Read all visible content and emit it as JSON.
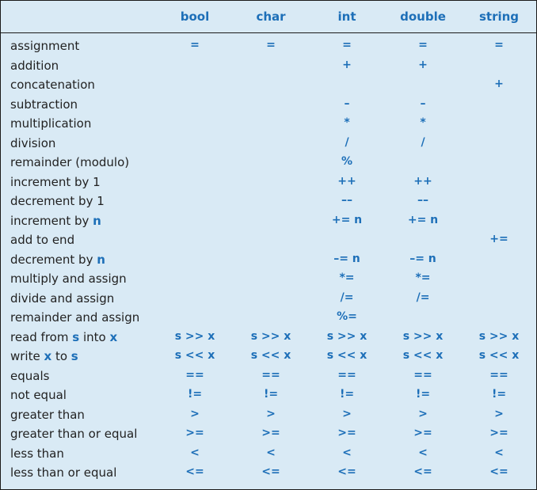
{
  "columns": [
    "bool",
    "char",
    "int",
    "double",
    "string"
  ],
  "rows": [
    {
      "label": [
        {
          "t": "assignment"
        }
      ],
      "values": [
        "=",
        "=",
        "=",
        "=",
        "="
      ]
    },
    {
      "label": [
        {
          "t": "addition"
        }
      ],
      "values": [
        "",
        "",
        "+",
        "+",
        ""
      ]
    },
    {
      "label": [
        {
          "t": "concatenation"
        }
      ],
      "values": [
        "",
        "",
        "",
        "",
        "+"
      ]
    },
    {
      "label": [
        {
          "t": "subtraction"
        }
      ],
      "values": [
        "",
        "",
        "–",
        "–",
        ""
      ]
    },
    {
      "label": [
        {
          "t": "multiplication"
        }
      ],
      "values": [
        "",
        "",
        "*",
        "*",
        ""
      ]
    },
    {
      "label": [
        {
          "t": "division"
        }
      ],
      "values": [
        "",
        "",
        "/",
        "/",
        ""
      ]
    },
    {
      "label": [
        {
          "t": "remainder (modulo)"
        }
      ],
      "values": [
        "",
        "",
        "%",
        "",
        ""
      ]
    },
    {
      "label": [
        {
          "t": "increment by 1"
        }
      ],
      "values": [
        "",
        "",
        "++",
        "++",
        ""
      ]
    },
    {
      "label": [
        {
          "t": "decrement by 1"
        }
      ],
      "values": [
        "",
        "",
        "––",
        "––",
        ""
      ]
    },
    {
      "label": [
        {
          "t": "increment by "
        },
        {
          "t": "n",
          "hl": true
        }
      ],
      "values": [
        "",
        "",
        "+= n",
        "+= n",
        ""
      ]
    },
    {
      "label": [
        {
          "t": "add to end"
        }
      ],
      "values": [
        "",
        "",
        "",
        "",
        "+="
      ]
    },
    {
      "label": [
        {
          "t": "decrement by "
        },
        {
          "t": "n",
          "hl": true
        }
      ],
      "values": [
        "",
        "",
        "–= n",
        "–= n",
        ""
      ]
    },
    {
      "label": [
        {
          "t": "multiply and assign"
        }
      ],
      "values": [
        "",
        "",
        "*=",
        "*=",
        ""
      ]
    },
    {
      "label": [
        {
          "t": "divide and assign"
        }
      ],
      "values": [
        "",
        "",
        "/=",
        "/=",
        ""
      ]
    },
    {
      "label": [
        {
          "t": "remainder and assign"
        }
      ],
      "values": [
        "",
        "",
        "%=",
        "",
        ""
      ]
    },
    {
      "label": [
        {
          "t": "read from "
        },
        {
          "t": "s",
          "hl": true
        },
        {
          "t": " into "
        },
        {
          "t": "x",
          "hl": true
        }
      ],
      "values": [
        "s >> x",
        "s >> x",
        "s >> x",
        "s >> x",
        "s >> x"
      ]
    },
    {
      "label": [
        {
          "t": "write "
        },
        {
          "t": "x",
          "hl": true
        },
        {
          "t": " to "
        },
        {
          "t": "s",
          "hl": true
        }
      ],
      "values": [
        "s << x",
        "s << x",
        "s << x",
        "s << x",
        "s << x"
      ]
    },
    {
      "label": [
        {
          "t": "equals"
        }
      ],
      "values": [
        "==",
        "==",
        "==",
        "==",
        "=="
      ]
    },
    {
      "label": [
        {
          "t": "not equal"
        }
      ],
      "values": [
        "!=",
        "!=",
        "!=",
        "!=",
        "!="
      ]
    },
    {
      "label": [
        {
          "t": "greater than"
        }
      ],
      "values": [
        ">",
        ">",
        ">",
        ">",
        ">"
      ]
    },
    {
      "label": [
        {
          "t": "greater than or equal"
        }
      ],
      "values": [
        ">=",
        ">=",
        ">=",
        ">=",
        ">="
      ]
    },
    {
      "label": [
        {
          "t": "less than"
        }
      ],
      "values": [
        "<",
        "<",
        "<",
        "<",
        "<"
      ]
    },
    {
      "label": [
        {
          "t": "less than or equal"
        }
      ],
      "values": [
        "<=",
        "<=",
        "<=",
        "<=",
        "<="
      ]
    }
  ]
}
